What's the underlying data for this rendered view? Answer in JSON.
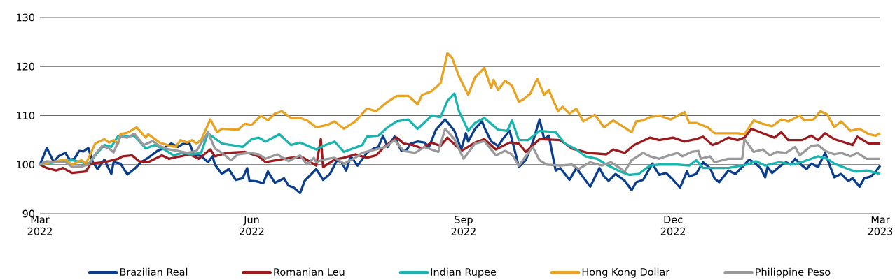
{
  "chart_data": {
    "type": "line",
    "xlim": [
      "2022-03-01",
      "2023-03-01"
    ],
    "ylim": [
      90,
      130
    ],
    "yticks": [
      90,
      100,
      110,
      120,
      130
    ],
    "xticks": [
      {
        "value": "2022-03-01",
        "label": "Mar 2022"
      },
      {
        "value": "2022-06-01",
        "label": "Jun 2022"
      },
      {
        "value": "2022-09-01",
        "label": "Sep 2022"
      },
      {
        "value": "2022-12-01",
        "label": "Dec 2022"
      },
      {
        "value": "2023-03-01",
        "label": "Mar 2023"
      }
    ],
    "grid": "y",
    "legend": "bottom",
    "marker": "none",
    "line_style": "solid",
    "series": [
      {
        "name": "Brazilian Real",
        "color": "#0a3d8c",
        "x": [
          "2022-03-01",
          "2022-03-04",
          "2022-03-07",
          "2022-03-09",
          "2022-03-12",
          "2022-03-14",
          "2022-03-16",
          "2022-03-18",
          "2022-03-20",
          "2022-03-22",
          "2022-03-24",
          "2022-03-26",
          "2022-03-29",
          "2022-04-01",
          "2022-04-02",
          "2022-04-05",
          "2022-04-08",
          "2022-04-11",
          "2022-04-14",
          "2022-04-17",
          "2022-04-21",
          "2022-04-24",
          "2022-04-27",
          "2022-04-30",
          "2022-05-02",
          "2022-05-05",
          "2022-05-07",
          "2022-05-10",
          "2022-05-13",
          "2022-05-15",
          "2022-05-16",
          "2022-05-19",
          "2022-05-22",
          "2022-05-25",
          "2022-05-28",
          "2022-05-30",
          "2022-05-31",
          "2022-06-03",
          "2022-06-06",
          "2022-06-08",
          "2022-06-11",
          "2022-06-15",
          "2022-06-17",
          "2022-06-19",
          "2022-06-22",
          "2022-06-24",
          "2022-06-29",
          "2022-07-02",
          "2022-07-05",
          "2022-07-08",
          "2022-07-10",
          "2022-07-12",
          "2022-07-14",
          "2022-07-17",
          "2022-07-21",
          "2022-07-24",
          "2022-07-26",
          "2022-07-28",
          "2022-07-30",
          "2022-08-02",
          "2022-08-05",
          "2022-08-07",
          "2022-08-09",
          "2022-08-12",
          "2022-08-15",
          "2022-08-17",
          "2022-08-20",
          "2022-08-24",
          "2022-08-28",
          "2022-08-31",
          "2022-09-02",
          "2022-09-03",
          "2022-09-06",
          "2022-09-09",
          "2022-09-10",
          "2022-09-13",
          "2022-09-16",
          "2022-09-18",
          "2022-09-21",
          "2022-09-23",
          "2022-09-25",
          "2022-09-28",
          "2022-10-01",
          "2022-10-04",
          "2022-10-06",
          "2022-10-08",
          "2022-10-11",
          "2022-10-13",
          "2022-10-17",
          "2022-10-20",
          "2022-10-23",
          "2022-10-26",
          "2022-10-30",
          "2022-11-01",
          "2022-11-03",
          "2022-11-06",
          "2022-11-10",
          "2022-11-13",
          "2022-11-15",
          "2022-11-18",
          "2022-11-22",
          "2022-11-25",
          "2022-11-28",
          "2022-12-01",
          "2022-12-04",
          "2022-12-07",
          "2022-12-08",
          "2022-12-11",
          "2022-12-14",
          "2022-12-17",
          "2022-12-19",
          "2022-12-21",
          "2022-12-25",
          "2022-12-28",
          "2022-12-31",
          "2023-01-03",
          "2023-01-05",
          "2023-01-08",
          "2023-01-10",
          "2023-01-11",
          "2023-01-13",
          "2023-01-16",
          "2023-01-19",
          "2023-01-21",
          "2023-01-23",
          "2023-01-26",
          "2023-01-28",
          "2023-01-30",
          "2023-02-02",
          "2023-02-05",
          "2023-02-09",
          "2023-02-12",
          "2023-02-15",
          "2023-02-17",
          "2023-02-20",
          "2023-02-22",
          "2023-02-25",
          "2023-02-27",
          "2023-03-01"
        ],
        "values": [
          100,
          103.4,
          100.5,
          101.7,
          102.4,
          101,
          101.2,
          102.8,
          102.7,
          103.4,
          100.5,
          99.1,
          101,
          98.1,
          100.5,
          100.2,
          98,
          99.1,
          100.5,
          101.4,
          102.8,
          103.4,
          104.3,
          103.6,
          104.2,
          104.3,
          101.9,
          101.8,
          100.5,
          101.7,
          100,
          98.1,
          99.1,
          96.9,
          97.2,
          99.3,
          96.7,
          96.6,
          96.2,
          98.6,
          96.3,
          97.2,
          95.7,
          95.4,
          94.2,
          96.7,
          99.1,
          96.9,
          98.1,
          100.9,
          100.5,
          98.8,
          101.7,
          99.8,
          102.4,
          103.3,
          103.6,
          105.9,
          103.6,
          105.7,
          102.8,
          102.8,
          104.3,
          104.7,
          104.5,
          103.6,
          107.1,
          109.2,
          106.9,
          103.1,
          106.4,
          104.7,
          107.3,
          108.8,
          107.6,
          104.7,
          103.8,
          105.2,
          106.9,
          103.3,
          99.5,
          100.9,
          104.5,
          109.2,
          105.2,
          105.9,
          98.8,
          99.3,
          96.9,
          99.3,
          97.4,
          95.5,
          99.3,
          97.6,
          96.7,
          98.1,
          96.7,
          94.8,
          96.4,
          96.9,
          100.2,
          97.9,
          98.3,
          96.9,
          95.3,
          98.6,
          97.6,
          98.1,
          100.5,
          99.3,
          97.2,
          96.4,
          98.8,
          98.1,
          99.5,
          101,
          100.5,
          99.3,
          97.4,
          99.5,
          98.3,
          99.5,
          100.5,
          100,
          101.2,
          99.8,
          99.1,
          100.2,
          99.5,
          102.4,
          97.4,
          98.1,
          96.7,
          97.2,
          95.5,
          97.2,
          97.6,
          98.6,
          99.8
        ]
      },
      {
        "name": "Romanian Leu",
        "color": "#9b1b1e",
        "x": [
          "2022-03-01",
          "2022-03-04",
          "2022-03-08",
          "2022-03-11",
          "2022-03-15",
          "2022-03-21",
          "2022-03-23",
          "2022-03-29",
          "2022-04-04",
          "2022-04-06",
          "2022-04-10",
          "2022-04-13",
          "2022-04-17",
          "2022-04-23",
          "2022-04-26",
          "2022-05-01",
          "2022-05-05",
          "2022-05-09",
          "2022-05-14",
          "2022-05-16",
          "2022-05-21",
          "2022-05-29",
          "2022-06-04",
          "2022-06-07",
          "2022-06-13",
          "2022-06-18",
          "2022-06-23",
          "2022-06-29",
          "2022-07-01",
          "2022-07-02",
          "2022-07-07",
          "2022-07-11",
          "2022-07-16",
          "2022-07-21",
          "2022-07-25",
          "2022-07-29",
          "2022-08-03",
          "2022-08-06",
          "2022-08-10",
          "2022-08-14",
          "2022-08-18",
          "2022-08-22",
          "2022-08-25",
          "2022-08-31",
          "2022-09-06",
          "2022-09-10",
          "2022-09-15",
          "2022-09-21",
          "2022-09-25",
          "2022-09-28",
          "2022-10-04",
          "2022-10-13",
          "2022-10-18",
          "2022-10-25",
          "2022-11-02",
          "2022-11-05",
          "2022-11-10",
          "2022-11-14",
          "2022-11-21",
          "2022-11-25",
          "2022-12-01",
          "2022-12-06",
          "2022-12-11",
          "2022-12-14",
          "2022-12-18",
          "2022-12-21",
          "2022-12-25",
          "2022-12-29",
          "2023-01-01",
          "2023-01-04",
          "2023-01-10",
          "2023-01-14",
          "2023-01-17",
          "2023-01-20",
          "2023-01-26",
          "2023-01-30",
          "2023-02-02",
          "2023-02-05",
          "2023-02-09",
          "2023-02-17",
          "2023-02-19",
          "2023-02-24",
          "2023-03-01"
        ],
        "values": [
          100,
          99.3,
          98.8,
          99.3,
          98.3,
          98.6,
          100.2,
          100.5,
          101.2,
          101.7,
          101.9,
          100.7,
          100.5,
          101.9,
          101.2,
          101.7,
          102.1,
          101.2,
          103.1,
          101.7,
          102.4,
          102.6,
          101.7,
          100.5,
          101,
          101.4,
          101.5,
          99.8,
          105.2,
          99.5,
          101,
          101.4,
          102.1,
          101.4,
          101.9,
          103.8,
          105.5,
          104.3,
          104,
          103.3,
          104.5,
          103.8,
          105.5,
          102.8,
          104.5,
          105.2,
          103.1,
          104.5,
          104.3,
          102.6,
          105.2,
          105,
          103.3,
          102.4,
          102.1,
          103.1,
          102.4,
          104,
          105.5,
          105,
          105.5,
          104.7,
          105.2,
          105.7,
          104,
          104.5,
          105.5,
          105,
          105.5,
          107.3,
          106.2,
          105.5,
          106.6,
          105,
          105,
          105.9,
          105,
          106.4,
          105.2,
          104,
          105.7,
          104.3,
          104.3
        ]
      },
      {
        "name": "Indian Rupee",
        "color": "#1bb5b0",
        "x": [
          "2022-03-01",
          "2022-03-08",
          "2022-03-15",
          "2022-03-19",
          "2022-03-22",
          "2022-03-25",
          "2022-03-29",
          "2022-04-01",
          "2022-04-04",
          "2022-04-07",
          "2022-04-11",
          "2022-04-16",
          "2022-04-20",
          "2022-04-24",
          "2022-04-28",
          "2022-05-02",
          "2022-05-06",
          "2022-05-10",
          "2022-05-13",
          "2022-05-19",
          "2022-05-23",
          "2022-05-28",
          "2022-06-01",
          "2022-06-04",
          "2022-06-07",
          "2022-06-13",
          "2022-06-18",
          "2022-06-22",
          "2022-06-29",
          "2022-07-02",
          "2022-07-07",
          "2022-07-11",
          "2022-07-15",
          "2022-07-19",
          "2022-07-21",
          "2022-07-26",
          "2022-07-30",
          "2022-08-03",
          "2022-08-08",
          "2022-08-12",
          "2022-08-16",
          "2022-08-18",
          "2022-08-22",
          "2022-08-25",
          "2022-08-28",
          "2022-08-30",
          "2022-09-03",
          "2022-09-06",
          "2022-09-10",
          "2022-09-13",
          "2022-09-16",
          "2022-09-20",
          "2022-09-22",
          "2022-09-25",
          "2022-09-29",
          "2022-10-04",
          "2022-10-11",
          "2022-10-15",
          "2022-10-20",
          "2022-10-24",
          "2022-10-29",
          "2022-11-02",
          "2022-11-08",
          "2022-11-12",
          "2022-11-16",
          "2022-11-21",
          "2022-11-25",
          "2022-12-03",
          "2022-12-08",
          "2022-12-11",
          "2022-12-14",
          "2022-12-19",
          "2022-12-25",
          "2023-01-02",
          "2023-01-06",
          "2023-01-10",
          "2023-01-16",
          "2023-01-22",
          "2023-01-27",
          "2023-02-02",
          "2023-02-06",
          "2023-02-09",
          "2023-02-14",
          "2023-02-18",
          "2023-02-23",
          "2023-03-01"
        ],
        "values": [
          100,
          100.5,
          100.9,
          100.5,
          100,
          101.9,
          104,
          103.6,
          105.9,
          105.7,
          105.9,
          103.3,
          104,
          103.1,
          101.9,
          102.4,
          102.1,
          102.4,
          106.4,
          104.3,
          104,
          103.6,
          105.2,
          105.5,
          104.7,
          106.2,
          104,
          104.5,
          103.1,
          103.8,
          104.7,
          102.6,
          103.3,
          104,
          105.7,
          105.9,
          107.6,
          108.8,
          109.2,
          107.3,
          109,
          110,
          109.7,
          113,
          114.5,
          110.9,
          106.9,
          108.5,
          109.5,
          108.3,
          107.1,
          106.9,
          109,
          105,
          105,
          106.9,
          106.6,
          104.3,
          103.1,
          101.7,
          101.2,
          100,
          98.6,
          97.9,
          98.1,
          99.8,
          100,
          100,
          99.8,
          100.9,
          99.3,
          99.3,
          99.3,
          100,
          100.7,
          99.8,
          100.5,
          100,
          100.7,
          101.7,
          101.2,
          100.2,
          99.3,
          98.6,
          98.8,
          98.1
        ]
      },
      {
        "name": "Hong Kong Dollar",
        "color": "#e8a322",
        "x": [
          "2022-03-01",
          "2022-03-08",
          "2022-03-12",
          "2022-03-15",
          "2022-03-19",
          "2022-03-21",
          "2022-03-25",
          "2022-03-29",
          "2022-03-31",
          "2022-04-02",
          "2022-04-04",
          "2022-04-05",
          "2022-04-08",
          "2022-04-12",
          "2022-04-16",
          "2022-04-17",
          "2022-04-22",
          "2022-04-26",
          "2022-04-29",
          "2022-05-01",
          "2022-05-04",
          "2022-05-06",
          "2022-05-08",
          "2022-05-10",
          "2022-05-14",
          "2022-05-17",
          "2022-05-19",
          "2022-05-26",
          "2022-05-29",
          "2022-06-01",
          "2022-06-05",
          "2022-06-08",
          "2022-06-11",
          "2022-06-14",
          "2022-06-18",
          "2022-06-22",
          "2022-06-25",
          "2022-06-29",
          "2022-07-04",
          "2022-07-07",
          "2022-07-11",
          "2022-07-16",
          "2022-07-21",
          "2022-07-25",
          "2022-07-30",
          "2022-08-03",
          "2022-08-08",
          "2022-08-12",
          "2022-08-14",
          "2022-08-18",
          "2022-08-22",
          "2022-08-25",
          "2022-08-27",
          "2022-08-30",
          "2022-09-03",
          "2022-09-06",
          "2022-09-10",
          "2022-09-13",
          "2022-09-14",
          "2022-09-16",
          "2022-09-19",
          "2022-09-22",
          "2022-09-25",
          "2022-09-27",
          "2022-09-30",
          "2022-10-03",
          "2022-10-06",
          "2022-10-08",
          "2022-10-12",
          "2022-10-14",
          "2022-10-17",
          "2022-10-20",
          "2022-10-23",
          "2022-10-28",
          "2022-11-01",
          "2022-11-05",
          "2022-11-09",
          "2022-11-13",
          "2022-11-15",
          "2022-11-18",
          "2022-11-21",
          "2022-11-25",
          "2022-11-30",
          "2022-12-03",
          "2022-12-06",
          "2022-12-08",
          "2022-12-11",
          "2022-12-16",
          "2022-12-19",
          "2022-12-24",
          "2022-12-29",
          "2023-01-01",
          "2023-01-05",
          "2023-01-09",
          "2023-01-13",
          "2023-01-17",
          "2023-01-20",
          "2023-01-25",
          "2023-01-27",
          "2023-01-31",
          "2023-02-03",
          "2023-02-06",
          "2023-02-09",
          "2023-02-12",
          "2023-02-16",
          "2023-02-20",
          "2023-02-24",
          "2023-02-27",
          "2023-03-01"
        ],
        "values": [
          100,
          100.7,
          101,
          100,
          100.9,
          100.2,
          104.3,
          105.2,
          104.5,
          105,
          104.3,
          106.2,
          106.5,
          107.6,
          105.5,
          106.2,
          104.5,
          103.9,
          103.6,
          105,
          104.5,
          105,
          104.3,
          105,
          109.2,
          106.6,
          107.3,
          107.1,
          108.3,
          108.1,
          110,
          109,
          110.4,
          110.9,
          109.5,
          109.5,
          109,
          107.6,
          108.1,
          108.8,
          107.3,
          108.8,
          111.4,
          110.9,
          112.8,
          114,
          114,
          112.3,
          114.2,
          114.9,
          116.6,
          122.7,
          121.8,
          118,
          114.2,
          117.8,
          119.7,
          115.6,
          117.3,
          115.2,
          117.1,
          116.1,
          112.8,
          113.3,
          114.5,
          117.5,
          114.2,
          115.2,
          110.9,
          111.8,
          110.4,
          111.4,
          108.8,
          110.2,
          107.6,
          109,
          107.8,
          106.6,
          108.8,
          109,
          109.7,
          110,
          109.2,
          110,
          110.7,
          108.5,
          108.5,
          107.6,
          106.4,
          106.4,
          106.4,
          106.2,
          109,
          108.3,
          107.8,
          109.2,
          108.8,
          110,
          109,
          109.2,
          110.9,
          110.2,
          107.6,
          108.8,
          106.9,
          107.3,
          106.2,
          105.9,
          106.4
        ]
      },
      {
        "name": "Philippine Peso",
        "color": "#9a9a9c",
        "x": [
          "2022-03-01",
          "2022-03-04",
          "2022-03-08",
          "2022-03-12",
          "2022-03-15",
          "2022-03-19",
          "2022-03-22",
          "2022-03-25",
          "2022-03-28",
          "2022-03-31",
          "2022-04-02",
          "2022-04-05",
          "2022-04-08",
          "2022-04-11",
          "2022-04-15",
          "2022-04-19",
          "2022-04-22",
          "2022-04-26",
          "2022-04-30",
          "2022-05-04",
          "2022-05-08",
          "2022-05-13",
          "2022-05-16",
          "2022-05-19",
          "2022-05-23",
          "2022-05-26",
          "2022-05-31",
          "2022-06-04",
          "2022-06-07",
          "2022-06-12",
          "2022-06-17",
          "2022-06-22",
          "2022-06-25",
          "2022-06-28",
          "2022-06-29",
          "2022-07-02",
          "2022-07-07",
          "2022-07-11",
          "2022-07-16",
          "2022-07-19",
          "2022-07-25",
          "2022-07-29",
          "2022-08-02",
          "2022-08-06",
          "2022-08-11",
          "2022-08-15",
          "2022-08-21",
          "2022-08-24",
          "2022-08-28",
          "2022-09-01",
          "2022-09-06",
          "2022-09-10",
          "2022-09-15",
          "2022-09-19",
          "2022-09-22",
          "2022-09-25",
          "2022-10-01",
          "2022-10-04",
          "2022-10-07",
          "2022-10-13",
          "2022-10-18",
          "2022-10-21",
          "2022-10-26",
          "2022-10-31",
          "2022-11-04",
          "2022-11-10",
          "2022-11-13",
          "2022-11-18",
          "2022-11-21",
          "2022-11-25",
          "2022-11-28",
          "2022-12-03",
          "2022-12-05",
          "2022-12-09",
          "2022-12-12",
          "2022-12-13",
          "2022-12-17",
          "2022-12-19",
          "2022-12-25",
          "2022-12-31",
          "2023-01-01",
          "2023-01-05",
          "2023-01-09",
          "2023-01-12",
          "2023-01-15",
          "2023-01-19",
          "2023-01-23",
          "2023-01-25",
          "2023-01-30",
          "2023-02-02",
          "2023-02-05",
          "2023-02-09",
          "2023-02-12",
          "2023-02-16",
          "2023-02-19",
          "2023-02-23",
          "2023-03-01"
        ],
        "values": [
          100,
          100.7,
          100.5,
          100.5,
          99.5,
          99.6,
          100,
          102.1,
          103.8,
          103.3,
          102.5,
          105.7,
          105.5,
          106.3,
          104,
          104.8,
          103.8,
          103.1,
          102.8,
          102.4,
          102.8,
          106.6,
          103.3,
          102.4,
          100.9,
          102.1,
          102.4,
          102.1,
          101.2,
          102.1,
          100.7,
          101.9,
          100,
          101.4,
          100.5,
          101,
          101.4,
          100.2,
          101.4,
          102.4,
          103.1,
          103.6,
          105,
          102.8,
          102.4,
          103.6,
          102.6,
          107.3,
          105.2,
          101.2,
          104.3,
          104.8,
          101.9,
          102.8,
          102.1,
          99.8,
          103.6,
          100.9,
          100,
          99.8,
          100,
          99.1,
          100.5,
          99.8,
          100.5,
          98.6,
          100.9,
          102.4,
          101.7,
          101.2,
          101.7,
          102.4,
          101.7,
          102.6,
          102.8,
          101.2,
          101.7,
          100.5,
          101.2,
          101.2,
          105.2,
          102.6,
          103.1,
          101.9,
          102.6,
          102.4,
          103.6,
          101.9,
          103.8,
          104,
          102.8,
          102.1,
          102.4,
          101.7,
          102.4,
          101.2,
          101.2
        ]
      }
    ]
  }
}
